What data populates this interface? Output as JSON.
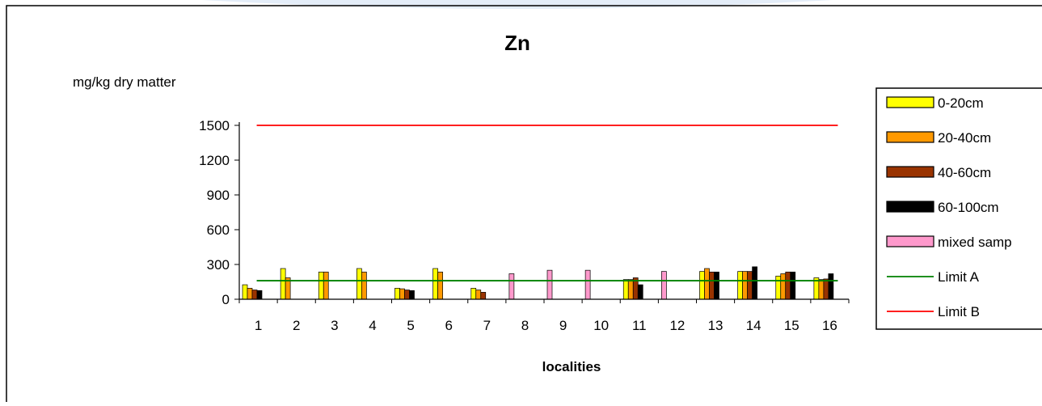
{
  "chart_data": {
    "type": "bar",
    "title": "Zn",
    "ylabel": "mg/kg dry matter",
    "xlabel": "localities",
    "ylim": [
      0,
      1500
    ],
    "yticks": [
      0,
      300,
      600,
      900,
      1200,
      1500
    ],
    "categories": [
      "1",
      "2",
      "3",
      "4",
      "5",
      "6",
      "7",
      "8",
      "9",
      "10",
      "11",
      "12",
      "13",
      "14",
      "15",
      "16"
    ],
    "grid": false,
    "legend_position": "right",
    "series": [
      {
        "name": "0-20cm",
        "color": "#ffff00",
        "values": [
          125,
          265,
          235,
          265,
          95,
          265,
          95,
          null,
          null,
          null,
          170,
          null,
          240,
          240,
          200,
          185
        ]
      },
      {
        "name": "20-40cm",
        "color": "#ff9900",
        "values": [
          95,
          185,
          235,
          235,
          90,
          235,
          80,
          null,
          null,
          null,
          170,
          null,
          265,
          240,
          220,
          170
        ]
      },
      {
        "name": "40-60cm",
        "color": "#993300",
        "values": [
          80,
          null,
          null,
          null,
          80,
          null,
          60,
          null,
          null,
          null,
          185,
          null,
          235,
          240,
          235,
          175
        ]
      },
      {
        "name": "60-100cm",
        "color": "#000000",
        "values": [
          75,
          null,
          null,
          null,
          75,
          null,
          null,
          null,
          null,
          null,
          125,
          null,
          235,
          280,
          235,
          220
        ]
      },
      {
        "name": "mixed samp",
        "color": "#ff99cc",
        "values": [
          null,
          null,
          null,
          null,
          null,
          null,
          null,
          220,
          250,
          250,
          null,
          240,
          null,
          null,
          null,
          null
        ]
      }
    ],
    "reference_lines": [
      {
        "name": "Limit A",
        "value": 160,
        "color": "#008000"
      },
      {
        "name": "Limit B",
        "value": 1500,
        "color": "#ff0000"
      }
    ]
  }
}
